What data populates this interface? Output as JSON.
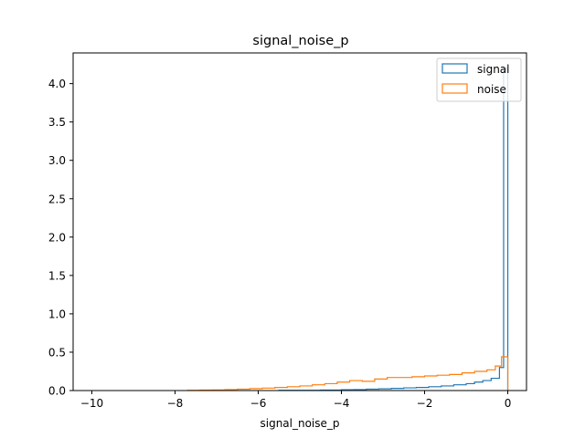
{
  "chart_data": {
    "type": "histogram-step",
    "title": "signal_noise_p",
    "xlabel": "signal_noise_p",
    "ylabel": "",
    "xlim": [
      -10.45,
      0.45
    ],
    "ylim": [
      0,
      4.4
    ],
    "grid": false,
    "legend_position": "upper right",
    "x_ticks": [
      {
        "value": -10,
        "label": "−10"
      },
      {
        "value": -8,
        "label": "−8"
      },
      {
        "value": -6,
        "label": "−6"
      },
      {
        "value": -4,
        "label": "−4"
      },
      {
        "value": -2,
        "label": "−2"
      },
      {
        "value": 0,
        "label": "0"
      }
    ],
    "y_ticks": [
      {
        "value": 0.0,
        "label": "0.0"
      },
      {
        "value": 0.5,
        "label": "0.5"
      },
      {
        "value": 1.0,
        "label": "1.0"
      },
      {
        "value": 1.5,
        "label": "1.5"
      },
      {
        "value": 2.0,
        "label": "2.0"
      },
      {
        "value": 2.5,
        "label": "2.5"
      },
      {
        "value": 3.0,
        "label": "3.0"
      },
      {
        "value": 3.5,
        "label": "3.5"
      },
      {
        "value": 4.0,
        "label": "4.0"
      }
    ],
    "series": [
      {
        "name": "signal",
        "color": "#1f77b4",
        "bins": [
          [
            -5.5,
            -5.0,
            0.003
          ],
          [
            -5.0,
            -4.5,
            0.004
          ],
          [
            -4.5,
            -4.0,
            0.006
          ],
          [
            -4.0,
            -3.7,
            0.01
          ],
          [
            -3.7,
            -3.4,
            0.012
          ],
          [
            -3.4,
            -3.1,
            0.018
          ],
          [
            -3.1,
            -2.8,
            0.022
          ],
          [
            -2.8,
            -2.5,
            0.028
          ],
          [
            -2.5,
            -2.2,
            0.035
          ],
          [
            -2.2,
            -1.9,
            0.04
          ],
          [
            -1.9,
            -1.6,
            0.05
          ],
          [
            -1.6,
            -1.3,
            0.06
          ],
          [
            -1.3,
            -1.0,
            0.075
          ],
          [
            -1.0,
            -0.8,
            0.09
          ],
          [
            -0.8,
            -0.6,
            0.11
          ],
          [
            -0.6,
            -0.4,
            0.13
          ],
          [
            -0.4,
            -0.2,
            0.16
          ],
          [
            -0.2,
            -0.1,
            0.3
          ],
          [
            -0.1,
            0.0,
            4.2
          ]
        ]
      },
      {
        "name": "noise",
        "color": "#ff7f0e",
        "bins": [
          [
            -7.7,
            -7.4,
            0.004
          ],
          [
            -7.4,
            -7.1,
            0.006
          ],
          [
            -7.1,
            -6.8,
            0.008
          ],
          [
            -6.8,
            -6.5,
            0.012
          ],
          [
            -6.5,
            -6.2,
            0.018
          ],
          [
            -6.2,
            -5.9,
            0.025
          ],
          [
            -5.9,
            -5.6,
            0.032
          ],
          [
            -5.6,
            -5.3,
            0.04
          ],
          [
            -5.3,
            -5.0,
            0.05
          ],
          [
            -5.0,
            -4.7,
            0.06
          ],
          [
            -4.7,
            -4.4,
            0.075
          ],
          [
            -4.4,
            -4.1,
            0.09
          ],
          [
            -4.1,
            -3.8,
            0.11
          ],
          [
            -3.8,
            -3.5,
            0.13
          ],
          [
            -3.5,
            -3.2,
            0.12
          ],
          [
            -3.2,
            -2.9,
            0.15
          ],
          [
            -2.9,
            -2.6,
            0.17
          ],
          [
            -2.6,
            -2.3,
            0.17
          ],
          [
            -2.3,
            -2.0,
            0.18
          ],
          [
            -2.0,
            -1.7,
            0.19
          ],
          [
            -1.7,
            -1.4,
            0.2
          ],
          [
            -1.4,
            -1.1,
            0.21
          ],
          [
            -1.1,
            -0.8,
            0.23
          ],
          [
            -0.8,
            -0.5,
            0.25
          ],
          [
            -0.5,
            -0.3,
            0.27
          ],
          [
            -0.3,
            -0.15,
            0.32
          ],
          [
            -0.15,
            0.0,
            0.44
          ]
        ]
      }
    ]
  }
}
